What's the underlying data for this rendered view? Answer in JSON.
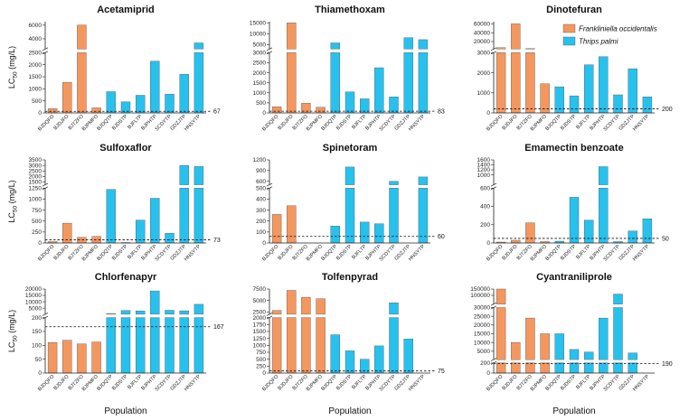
{
  "colors": {
    "frankliniella": "#f4975f",
    "thrips": "#27c1ee"
  },
  "legend": {
    "items": [
      {
        "label": "Frankliniella occidentalis",
        "color": "#f4975f"
      },
      {
        "label": "Thrips palmi",
        "color": "#27c1ee"
      }
    ]
  },
  "ylabel_prefix": "LC",
  "ylabel_sub": "50",
  "ylabel_suffix": " (mg/L)",
  "xlabel": "Population",
  "chart_data": [
    {
      "type": "bar",
      "title": "Acetamiprid",
      "categories": [
        "BJDQFO",
        "BJDJFO",
        "BJTZFO",
        "BJPMFO",
        "BJDQTP",
        "BJDSTP",
        "BJFLTP",
        "BJPHTP",
        "SCDYTP",
        "GDZJTP",
        "HNSYTP"
      ],
      "species": [
        "F",
        "F",
        "F",
        "F",
        "T",
        "T",
        "T",
        "T",
        "T",
        "T",
        "T"
      ],
      "values": [
        180,
        1270,
        6000,
        210,
        880,
        460,
        730,
        2150,
        780,
        1600,
        3400
      ],
      "reference": 67,
      "lower": {
        "range": [
          0,
          2500
        ],
        "ticks": [
          0,
          500,
          1000,
          1500,
          2000,
          2500
        ]
      },
      "upper": {
        "range": [
          2500,
          6500
        ],
        "ticks": [
          4000,
          6000
        ]
      }
    },
    {
      "type": "bar",
      "title": "Thiamethoxam",
      "categories": [
        "BJDQFO",
        "BJDJFO",
        "BJTZFO",
        "BJPMFO",
        "BJDQTP",
        "BJDSTP",
        "BJFLTP",
        "BJPHTP",
        "SCDYTP",
        "GDZJTP",
        "HNSYTP"
      ],
      "species": [
        "F",
        "F",
        "F",
        "F",
        "T",
        "T",
        "T",
        "T",
        "T",
        "T",
        "T"
      ],
      "values": [
        310,
        15000,
        480,
        280,
        5800,
        1050,
        700,
        2250,
        800,
        8200,
        7300
      ],
      "reference": 83,
      "lower": {
        "range": [
          0,
          3000
        ],
        "ticks": [
          0,
          500,
          1000,
          1500,
          2000,
          2500,
          3000
        ]
      },
      "upper": {
        "range": [
          3000,
          15500
        ],
        "ticks": [
          5000,
          10000,
          15000
        ]
      }
    },
    {
      "type": "bar",
      "title": "Dinotefuran",
      "categories": [
        "BJDQFO",
        "BJDJFO",
        "BJTZFO",
        "BJPMFO",
        "BJDQTP",
        "BJDSTP",
        "BJFLTP",
        "BJPHTP",
        "SCDYTP",
        "GDZJTP",
        "HNSYTP"
      ],
      "species": [
        "F",
        "F",
        "F",
        "F",
        "T",
        "T",
        "T",
        "T",
        "T",
        "T",
        "T"
      ],
      "values": [
        6000,
        60000,
        4000,
        1450,
        1300,
        850,
        2400,
        2800,
        900,
        2200,
        800
      ],
      "reference": 200,
      "lower": {
        "range": [
          0,
          3000
        ],
        "ticks": [
          0,
          1000,
          2000,
          3000
        ]
      },
      "upper": {
        "range": [
          3000,
          65000
        ],
        "ticks": [
          20000,
          40000,
          60000
        ]
      }
    },
    {
      "type": "bar",
      "title": "Sulfoxaflor",
      "categories": [
        "BJDQFO",
        "BJDJFO",
        "BJTZFO",
        "BJPMFO",
        "BJDQTP",
        "BJDSTP",
        "BJFLTP",
        "BJPHTP",
        "SCDYTP",
        "GDZJTP",
        "HNSYTP"
      ],
      "species": [
        "F",
        "F",
        "F",
        "F",
        "T",
        "T",
        "T",
        "T",
        "T",
        "T",
        "T"
      ],
      "values": [
        30,
        450,
        130,
        150,
        1220,
        10,
        520,
        1020,
        220,
        3000,
        2900
      ],
      "reference": 73,
      "lower": {
        "range": [
          0,
          1250
        ],
        "ticks": [
          0,
          250,
          500,
          750,
          1000,
          1250
        ]
      },
      "upper": {
        "range": [
          1250,
          3500
        ],
        "ticks": [
          1500,
          2000,
          2500,
          3000,
          3500
        ]
      }
    },
    {
      "type": "bar",
      "title": "Spinetoram",
      "categories": [
        "BJDQFO",
        "BJDJFO",
        "BJTZFO",
        "BJPMFO",
        "BJDQTP",
        "BJDSTP",
        "BJFLTP",
        "BJPHTP",
        "SCDYTP",
        "GDZJTP",
        "HNSYTP"
      ],
      "species": [
        "F",
        "F",
        "F",
        "F",
        "T",
        "T",
        "T",
        "T",
        "T",
        "T",
        "T"
      ],
      "values": [
        260,
        340,
        0,
        0,
        155,
        1000,
        190,
        175,
        600,
        0,
        720
      ],
      "reference": 60,
      "lower": {
        "range": [
          0,
          500
        ],
        "ticks": [
          0,
          100,
          200,
          300,
          400,
          500
        ]
      },
      "upper": {
        "range": [
          500,
          1200
        ],
        "ticks": [
          600,
          900,
          1200
        ]
      }
    },
    {
      "type": "bar",
      "title": "Emamectin benzoate",
      "categories": [
        "BJDQFO",
        "BJDJFO",
        "BJTZFO",
        "BJPMFO",
        "BJDQTP",
        "BJDSTP",
        "BJFLTP",
        "BJPHTP",
        "SCDYTP",
        "GDZJTP",
        "HNSYTP"
      ],
      "species": [
        "F",
        "F",
        "F",
        "F",
        "T",
        "T",
        "T",
        "T",
        "T",
        "T",
        "T"
      ],
      "values": [
        10,
        30,
        220,
        15,
        20,
        500,
        250,
        1330,
        15,
        130,
        265
      ],
      "reference": 50,
      "lower": {
        "range": [
          0,
          600
        ],
        "ticks": [
          0,
          200,
          400,
          600
        ]
      },
      "upper": {
        "range": [
          600,
          1600
        ],
        "ticks": [
          1000,
          1200,
          1400,
          1600
        ]
      }
    },
    {
      "type": "bar",
      "title": "Chlorfenapyr",
      "categories": [
        "BJDQFO",
        "BJDJFO",
        "BJTZFO",
        "BJPMFO",
        "BJDQTP",
        "BJDSTP",
        "BJFLTP",
        "BJPHTP",
        "SCDYTP",
        "GDZJTP",
        "HNSYTP"
      ],
      "species": [
        "F",
        "F",
        "F",
        "F",
        "T",
        "T",
        "T",
        "T",
        "T",
        "T",
        "T"
      ],
      "values": [
        110,
        118,
        105,
        112,
        700,
        3200,
        2800,
        18500,
        3300,
        2900,
        8000
      ],
      "reference": 167,
      "lower": {
        "range": [
          0,
          200
        ],
        "ticks": [
          0,
          50,
          100,
          150,
          200
        ]
      },
      "upper": {
        "range": [
          200,
          20000
        ],
        "ticks": [
          5000,
          10000,
          15000,
          20000
        ]
      }
    },
    {
      "type": "bar",
      "title": "Tolfenpyrad",
      "categories": [
        "BJDQFO",
        "BJDJFO",
        "BJTZFO",
        "BJPMFO",
        "BJDQTP",
        "BJDSTP",
        "BJFLTP",
        "BJPHTP",
        "SCDYTP",
        "GDZJTP",
        "HNSYTP"
      ],
      "species": [
        "F",
        "F",
        "F",
        "F",
        "T",
        "T",
        "T",
        "T",
        "T",
        "T",
        "T"
      ],
      "values": [
        2800,
        7200,
        5700,
        5400,
        1380,
        800,
        500,
        980,
        4500,
        1230,
        0
      ],
      "reference": 75,
      "lower": {
        "range": [
          0,
          2000
        ],
        "ticks": [
          0,
          250,
          500,
          750,
          1000,
          1250,
          1500,
          1750,
          2000
        ]
      },
      "upper": {
        "range": [
          2000,
          7500
        ],
        "ticks": [
          2500,
          5000,
          7500
        ]
      }
    },
    {
      "type": "bar",
      "title": "Cyantraniliprole",
      "categories": [
        "BJDQFO",
        "BJDJFO",
        "BJTZFO",
        "BJPMFO",
        "BJDQTP",
        "BJDSTP",
        "BJFLTP",
        "BJPHTP",
        "SCDYTP",
        "GDZJTP",
        "HNSYTP"
      ],
      "species": [
        "F",
        "F",
        "F",
        "F",
        "T",
        "T",
        "T",
        "T",
        "T",
        "T",
        "T"
      ],
      "values": [
        150000,
        10000,
        24000,
        15000,
        15000,
        6000,
        4500,
        24000,
        110000,
        4000,
        0
      ],
      "reference": 190,
      "lower": {
        "range": [
          0,
          200
        ],
        "ticks": [
          0,
          200
        ]
      },
      "middle": {
        "range": [
          200,
          30000
        ],
        "ticks": [
          5000,
          10000,
          15000,
          20000,
          25000,
          30000
        ]
      },
      "upper": {
        "range": [
          30000,
          150000
        ],
        "ticks": [
          100000,
          150000
        ]
      }
    }
  ]
}
